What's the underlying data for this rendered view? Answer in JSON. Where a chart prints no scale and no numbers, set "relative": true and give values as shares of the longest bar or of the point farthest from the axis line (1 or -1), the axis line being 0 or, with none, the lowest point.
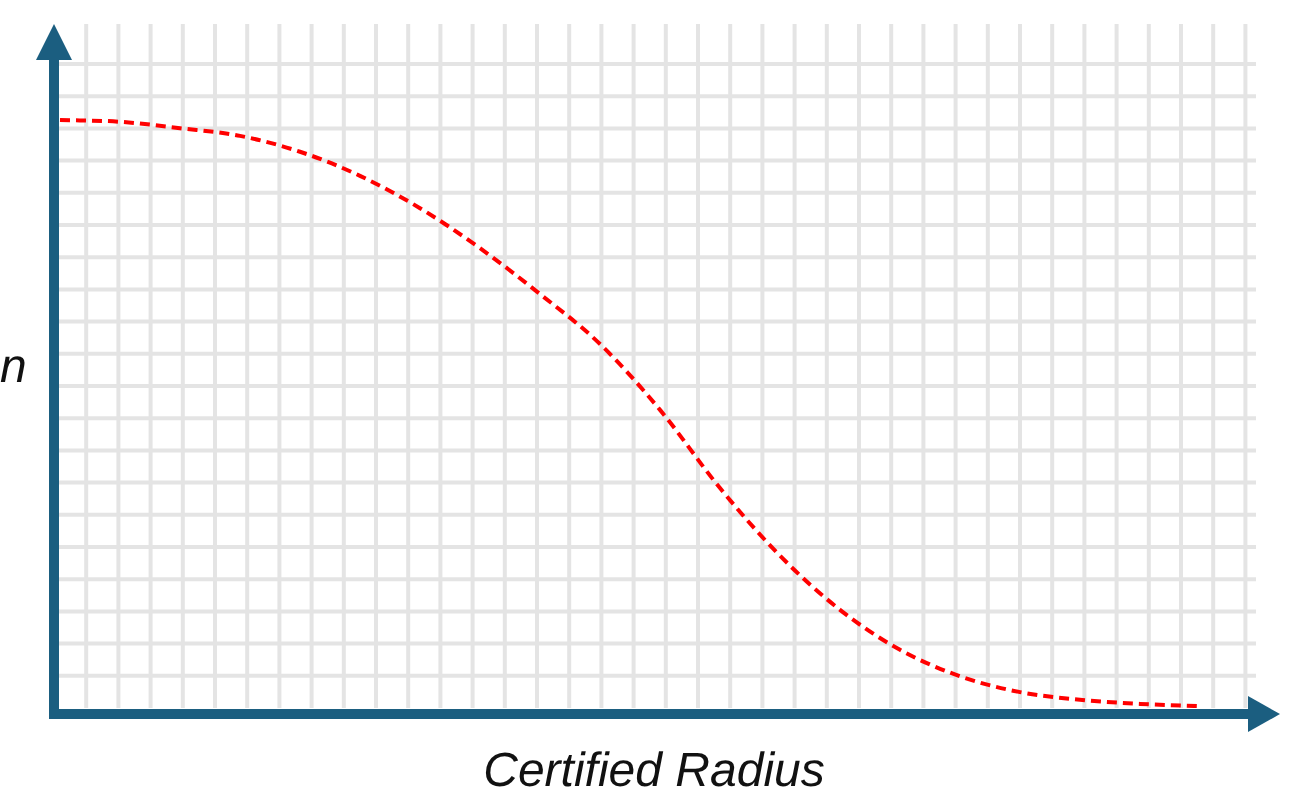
{
  "chart_data": {
    "type": "line",
    "relative": true,
    "xlabel": "Certified Radius",
    "ylabel": "n",
    "categories": [
      null,
      null,
      null,
      null,
      null,
      null,
      null,
      null,
      null,
      null,
      null,
      null,
      null,
      null,
      null,
      null,
      null,
      null,
      null,
      null
    ],
    "series": [
      {
        "color": "#ff0000",
        "values": [
          1,
          0.997,
          0.986,
          0.973,
          0.946,
          0.905,
          0.85,
          0.782,
          0.704,
          0.619,
          0.507,
          0.374,
          0.259,
          0.167,
          0.099,
          0.054,
          0.027,
          0.014,
          0.007,
          0.003
        ]
      }
    ],
    "line_style": "dashed",
    "marker": "none",
    "grid": true,
    "legend": false
  }
}
